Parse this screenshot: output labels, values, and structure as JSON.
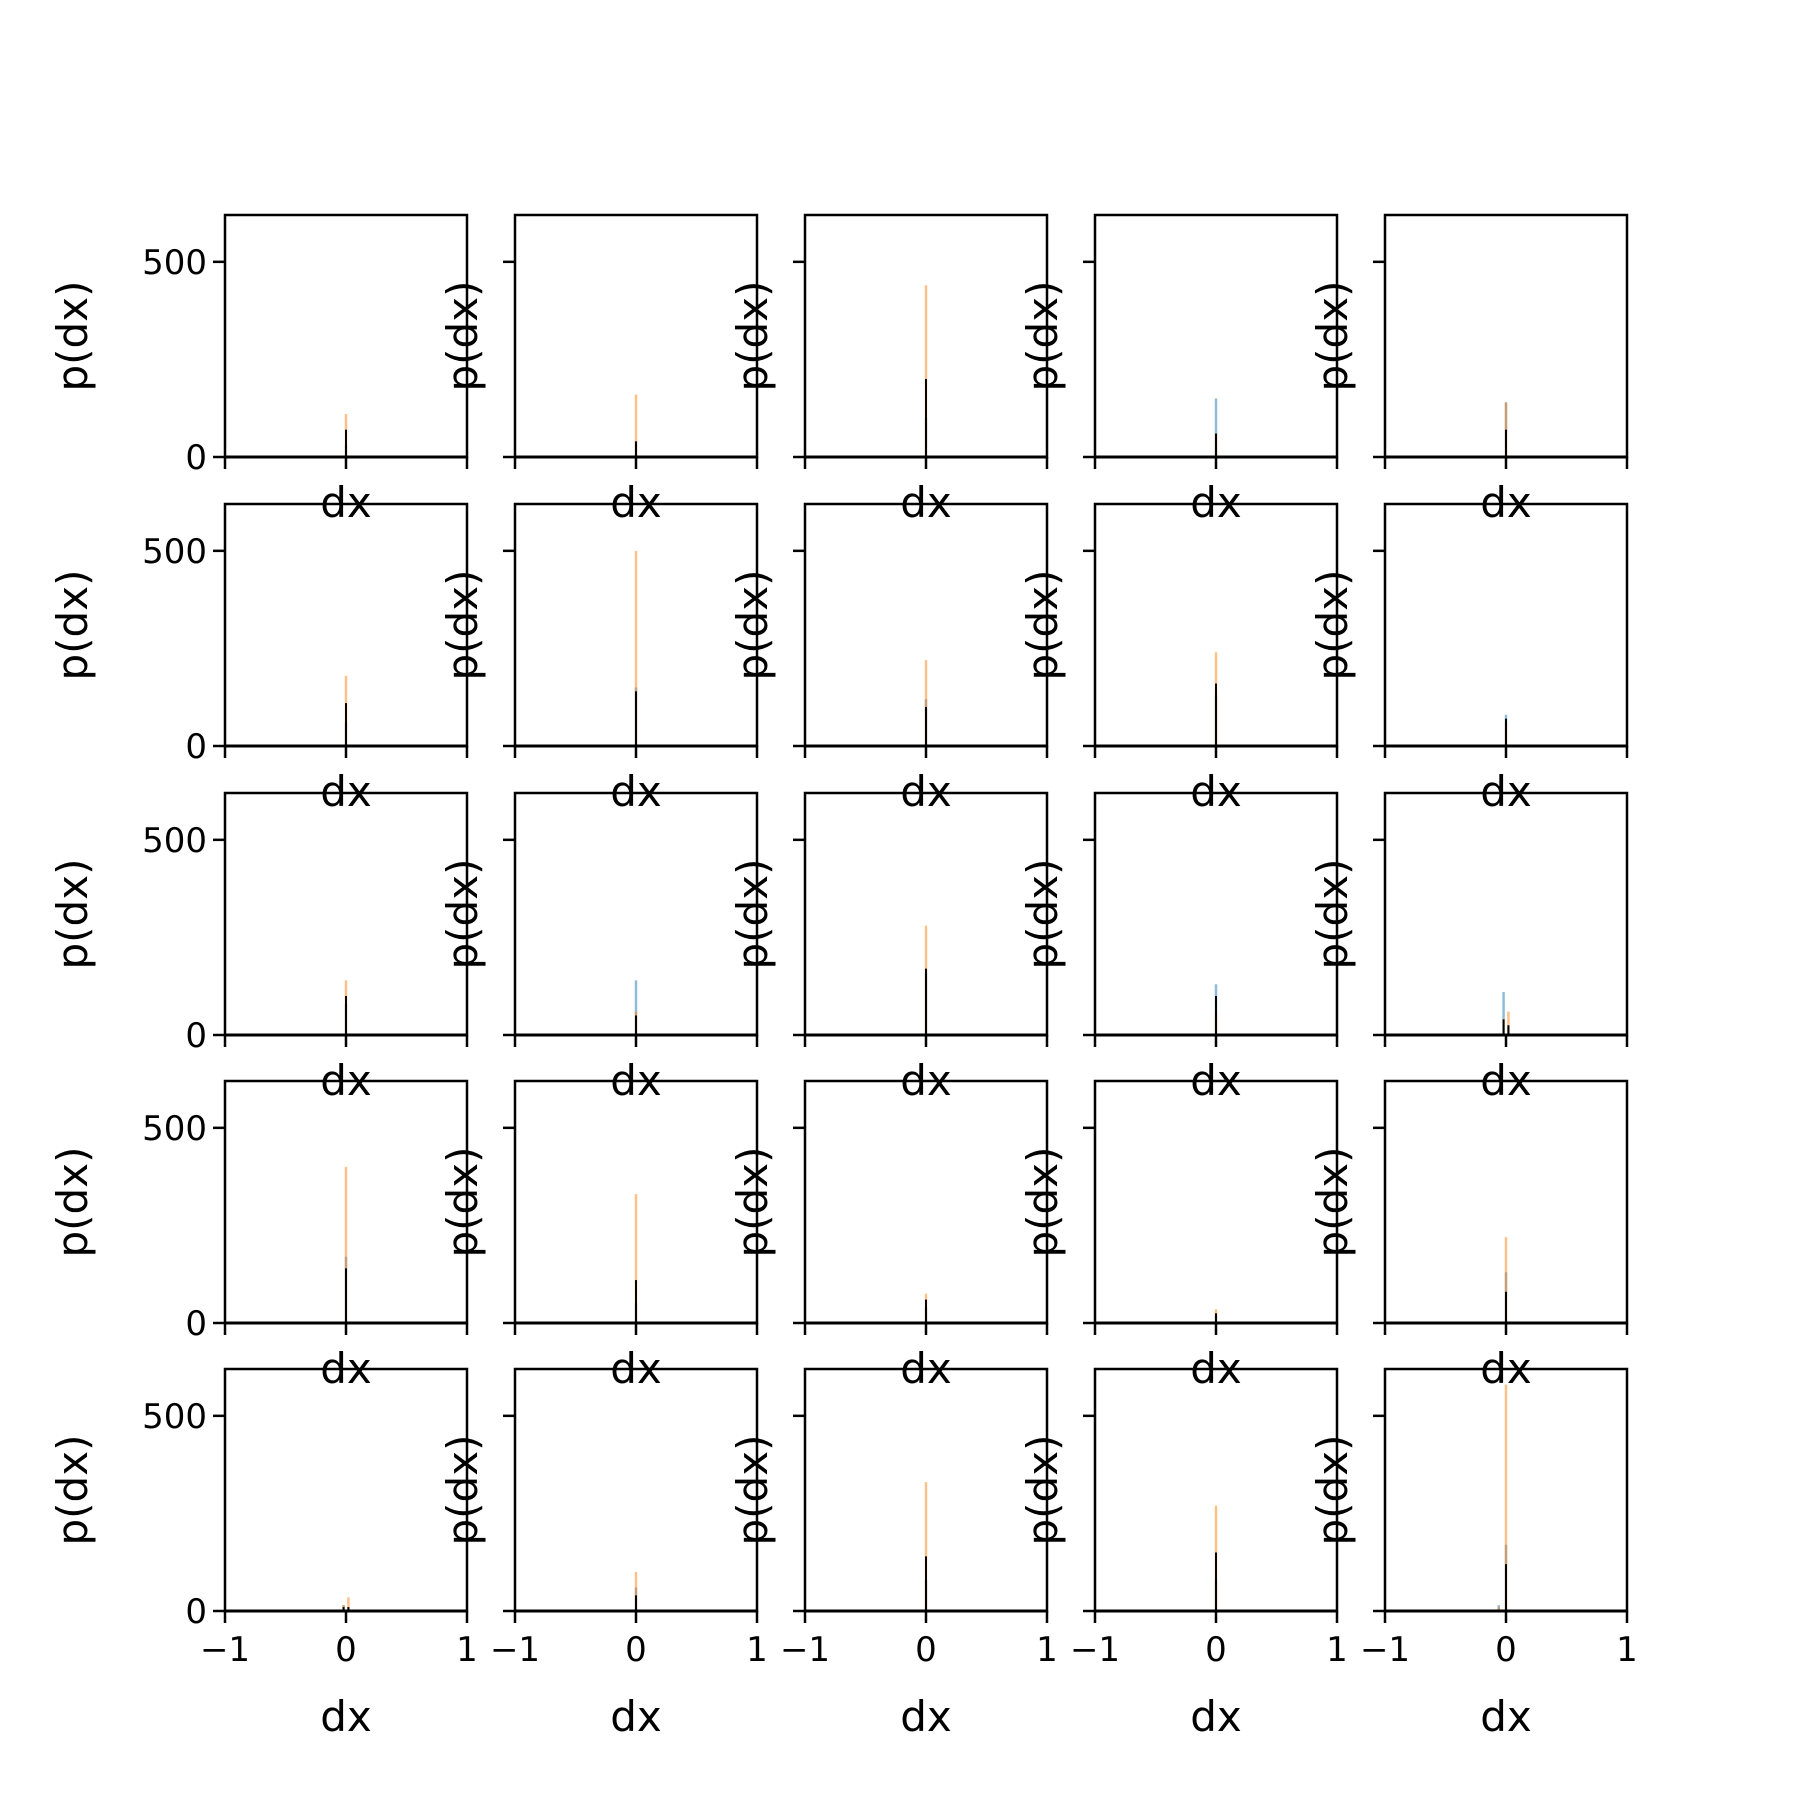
{
  "chart_data": {
    "type": "histogram-grid",
    "rows": 5,
    "cols": 5,
    "xlabel": "dx",
    "ylabel": "p(dx)",
    "xlim": [
      -1,
      1
    ],
    "ylim": [
      0,
      620
    ],
    "xticks": [
      -1,
      0,
      1
    ],
    "xtick_labels": [
      "−1",
      "0",
      "1"
    ],
    "yticks": [
      0,
      500
    ],
    "ytick_labels": [
      "0",
      "500"
    ],
    "bin_width": 0.02,
    "colors": {
      "series_a": "#1f77b4",
      "series_b": "#ff7f0e",
      "series_c": "#000000"
    },
    "subplots": [
      {
        "row": 0,
        "col": 0,
        "bins": [
          {
            "x": 0.0,
            "a": 30,
            "b": 110,
            "c": 70
          }
        ]
      },
      {
        "row": 0,
        "col": 1,
        "bins": [
          {
            "x": 0.0,
            "a": 40,
            "b": 160,
            "c": 40
          }
        ]
      },
      {
        "row": 0,
        "col": 2,
        "bins": [
          {
            "x": 0.0,
            "a": 100,
            "b": 440,
            "c": 200
          }
        ]
      },
      {
        "row": 0,
        "col": 3,
        "bins": [
          {
            "x": 0.0,
            "a": 150,
            "b": 60,
            "c": 60
          }
        ]
      },
      {
        "row": 0,
        "col": 4,
        "bins": [
          {
            "x": 0.0,
            "a": 140,
            "b": 140,
            "c": 70
          }
        ]
      },
      {
        "row": 1,
        "col": 0,
        "bins": [
          {
            "x": 0.0,
            "a": 60,
            "b": 180,
            "c": 110
          }
        ]
      },
      {
        "row": 1,
        "col": 1,
        "bins": [
          {
            "x": 0.0,
            "a": 150,
            "b": 500,
            "c": 140
          }
        ]
      },
      {
        "row": 1,
        "col": 2,
        "bins": [
          {
            "x": 0.0,
            "a": 120,
            "b": 220,
            "c": 100
          }
        ]
      },
      {
        "row": 1,
        "col": 3,
        "bins": [
          {
            "x": 0.0,
            "a": 130,
            "b": 240,
            "c": 160
          }
        ]
      },
      {
        "row": 1,
        "col": 4,
        "bins": [
          {
            "x": 0.0,
            "a": 80,
            "b": 60,
            "c": 70
          }
        ]
      },
      {
        "row": 2,
        "col": 0,
        "bins": [
          {
            "x": 0.0,
            "a": 80,
            "b": 140,
            "c": 100
          }
        ]
      },
      {
        "row": 2,
        "col": 1,
        "bins": [
          {
            "x": 0.0,
            "a": 140,
            "b": 60,
            "c": 50
          }
        ]
      },
      {
        "row": 2,
        "col": 2,
        "bins": [
          {
            "x": 0.0,
            "a": 160,
            "b": 280,
            "c": 170
          }
        ]
      },
      {
        "row": 2,
        "col": 3,
        "bins": [
          {
            "x": 0.0,
            "a": 130,
            "b": 60,
            "c": 100
          }
        ]
      },
      {
        "row": 2,
        "col": 4,
        "bins": [
          {
            "x": -0.02,
            "a": 110,
            "b": 40,
            "c": 40
          },
          {
            "x": 0.02,
            "a": 20,
            "b": 60,
            "c": 25
          }
        ]
      },
      {
        "row": 3,
        "col": 0,
        "bins": [
          {
            "x": 0.0,
            "a": 170,
            "b": 400,
            "c": 140
          }
        ]
      },
      {
        "row": 3,
        "col": 1,
        "bins": [
          {
            "x": 0.0,
            "a": 50,
            "b": 330,
            "c": 110
          }
        ]
      },
      {
        "row": 3,
        "col": 2,
        "bins": [
          {
            "x": 0.0,
            "a": 40,
            "b": 75,
            "c": 60
          }
        ]
      },
      {
        "row": 3,
        "col": 3,
        "bins": [
          {
            "x": 0.0,
            "a": 20,
            "b": 35,
            "c": 25
          }
        ]
      },
      {
        "row": 3,
        "col": 4,
        "bins": [
          {
            "x": 0.0,
            "a": 130,
            "b": 220,
            "c": 80
          }
        ]
      },
      {
        "row": 4,
        "col": 0,
        "bins": [
          {
            "x": -0.02,
            "a": 15,
            "b": 15,
            "c": 10
          },
          {
            "x": 0.02,
            "a": 10,
            "b": 35,
            "c": 10
          }
        ]
      },
      {
        "row": 4,
        "col": 1,
        "bins": [
          {
            "x": 0.0,
            "a": 60,
            "b": 100,
            "c": 40
          }
        ]
      },
      {
        "row": 4,
        "col": 2,
        "bins": [
          {
            "x": 0.0,
            "a": 80,
            "b": 330,
            "c": 140
          }
        ]
      },
      {
        "row": 4,
        "col": 3,
        "bins": [
          {
            "x": 0.0,
            "a": 80,
            "b": 270,
            "c": 150
          }
        ]
      },
      {
        "row": 4,
        "col": 4,
        "bins": [
          {
            "x": -0.06,
            "a": 15,
            "b": 10,
            "c": 0
          },
          {
            "x": 0.0,
            "a": 170,
            "b": 580,
            "c": 120
          }
        ]
      }
    ]
  }
}
